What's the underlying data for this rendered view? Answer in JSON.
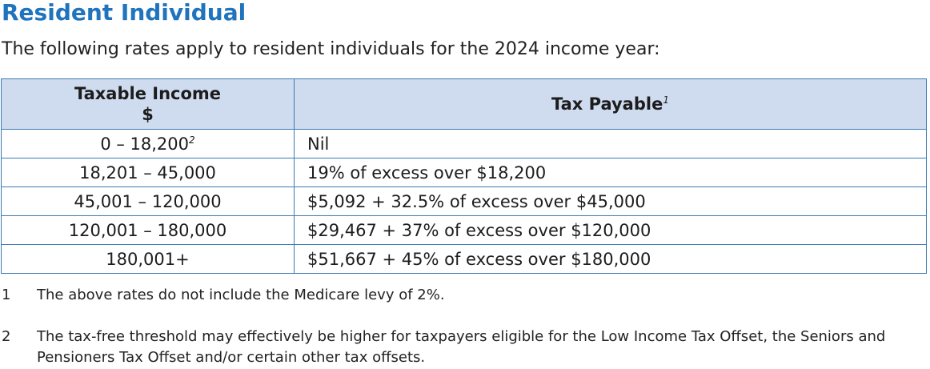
{
  "title": "Resident Individual",
  "intro": "The following rates apply to resident individuals for the 2024 income year:",
  "table": {
    "header": {
      "income_label": "Taxable Income",
      "income_unit": "$",
      "tax_label": "Tax Payable",
      "tax_note": "1"
    },
    "rows": [
      {
        "income": "0 – 18,200",
        "income_note": "2",
        "tax": "Nil"
      },
      {
        "income": "18,201 – 45,000",
        "income_note": "",
        "tax": "19% of excess over $18,200"
      },
      {
        "income": "45,001 – 120,000",
        "income_note": "",
        "tax": "$5,092 + 32.5% of excess over $45,000"
      },
      {
        "income": "120,001 – 180,000",
        "income_note": "",
        "tax": "$29,467 + 37% of excess over $120,000"
      },
      {
        "income": "180,001+",
        "income_note": "",
        "tax": "$51,667 + 45% of excess over $180,000"
      }
    ]
  },
  "footnotes": [
    {
      "num": "1",
      "text": "The above rates do not include the Medicare levy of 2%."
    },
    {
      "num": "2",
      "text": "The tax-free threshold may effectively be higher for taxpayers eligible for the Low Income Tax Offset, the Seniors and Pensioners Tax Offset and/or certain other tax offsets."
    }
  ],
  "colors": {
    "title": "#1f74bd",
    "header_bg": "#cfdcef",
    "border": "#3b7bb3"
  }
}
